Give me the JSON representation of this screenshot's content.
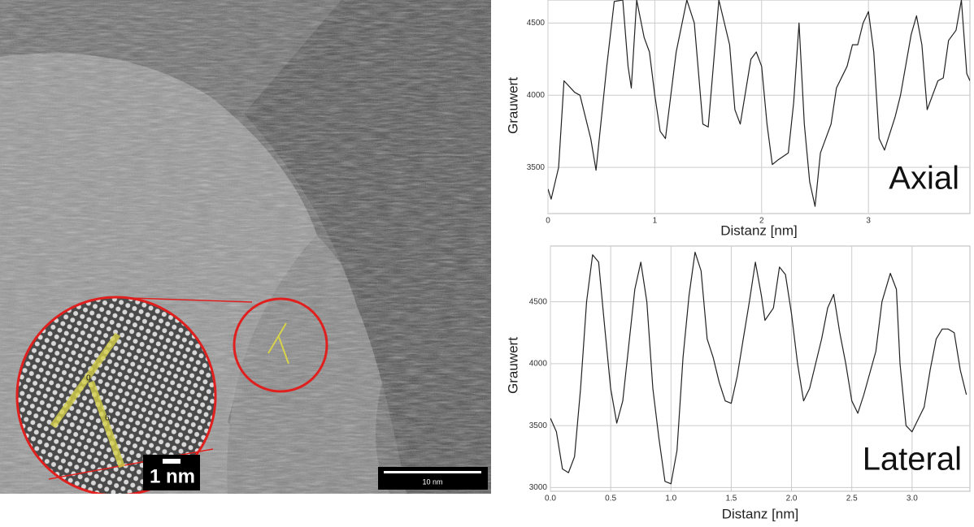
{
  "image": {
    "inset_scale_bar": "1 nm",
    "scale_bar": "10 nm",
    "markers": [
      "0",
      "6"
    ]
  },
  "chart_data": [
    {
      "type": "line",
      "annotation": "Axial",
      "x_label": "Distanz [nm]",
      "y_label": "Grauwert",
      "color": "#222",
      "grid": true,
      "x": [
        0,
        0.03,
        0.1,
        0.15,
        0.25,
        0.3,
        0.4,
        0.45,
        0.55,
        0.62,
        0.7,
        0.75,
        0.78,
        0.83,
        0.9,
        0.95,
        1.0,
        1.05,
        1.1,
        1.2,
        1.3,
        1.37,
        1.45,
        1.5,
        1.6,
        1.7,
        1.75,
        1.8,
        1.9,
        1.95,
        2.0,
        2.05,
        2.1,
        2.15,
        2.25,
        2.3,
        2.35,
        2.4,
        2.45,
        2.5,
        2.55,
        2.65,
        2.7,
        2.8,
        2.85,
        2.9,
        2.95,
        3.0,
        3.05,
        3.1,
        3.15,
        3.25,
        3.3,
        3.4,
        3.45,
        3.5,
        3.55,
        3.6,
        3.65,
        3.7,
        3.75,
        3.82,
        3.87,
        3.92,
        3.95
      ],
      "values": [
        3350,
        3280,
        3500,
        4100,
        4020,
        4000,
        3700,
        3480,
        4200,
        4650,
        4660,
        4200,
        4050,
        4660,
        4400,
        4300,
        4000,
        3750,
        3700,
        4300,
        4660,
        4500,
        3800,
        3780,
        4660,
        4350,
        3900,
        3800,
        4250,
        4300,
        4200,
        3800,
        3520,
        3550,
        3600,
        3950,
        4500,
        3800,
        3400,
        3230,
        3600,
        3800,
        4050,
        4200,
        4350,
        4350,
        4500,
        4580,
        4300,
        3700,
        3620,
        3850,
        4000,
        4420,
        4550,
        4350,
        3900,
        4000,
        4100,
        4120,
        4380,
        4450,
        4660,
        4150,
        4100
      ],
      "xlim": [
        0,
        3.95
      ],
      "ylim": [
        3180,
        4660
      ],
      "xticks": [
        0,
        1,
        2,
        3
      ],
      "yticks": [
        3500,
        4000,
        4500
      ]
    },
    {
      "type": "line",
      "annotation": "Lateral",
      "x_label": "Distanz [nm]",
      "y_label": "Grauwert",
      "color": "#222",
      "grid": true,
      "x": [
        0,
        0.05,
        0.1,
        0.15,
        0.2,
        0.25,
        0.3,
        0.35,
        0.4,
        0.45,
        0.5,
        0.55,
        0.6,
        0.7,
        0.75,
        0.8,
        0.85,
        0.9,
        0.95,
        1.0,
        1.05,
        1.1,
        1.15,
        1.2,
        1.25,
        1.3,
        1.35,
        1.4,
        1.45,
        1.5,
        1.55,
        1.6,
        1.65,
        1.7,
        1.75,
        1.78,
        1.85,
        1.9,
        1.95,
        2.0,
        2.05,
        2.1,
        2.15,
        2.25,
        2.3,
        2.35,
        2.4,
        2.45,
        2.5,
        2.55,
        2.6,
        2.7,
        2.75,
        2.82,
        2.87,
        2.9,
        2.95,
        3.0,
        3.05,
        3.1,
        3.15,
        3.2,
        3.25,
        3.3,
        3.35,
        3.4,
        3.45
      ],
      "values": [
        3560,
        3450,
        3150,
        3120,
        3250,
        3800,
        4500,
        4880,
        4820,
        4300,
        3800,
        3520,
        3700,
        4600,
        4820,
        4500,
        3800,
        3400,
        3050,
        3030,
        3300,
        4050,
        4550,
        4900,
        4750,
        4200,
        4050,
        3850,
        3700,
        3680,
        3900,
        4200,
        4500,
        4820,
        4550,
        4350,
        4450,
        4780,
        4720,
        4400,
        4000,
        3700,
        3800,
        4200,
        4450,
        4560,
        4250,
        4000,
        3700,
        3600,
        3750,
        4100,
        4500,
        4730,
        4600,
        4000,
        3500,
        3450,
        3550,
        3650,
        3950,
        4200,
        4280,
        4280,
        4250,
        3950,
        3750
      ],
      "xlim": [
        0,
        3.48
      ],
      "ylim": [
        2970,
        4950
      ],
      "xticks": [
        {
          "value": 0,
          "label": "0.0"
        },
        {
          "value": 0.5,
          "label": "0.5"
        },
        {
          "value": 1,
          "label": "1.0"
        },
        {
          "value": 1.5,
          "label": "1.5"
        },
        {
          "value": 2,
          "label": "2.0"
        },
        {
          "value": 2.5,
          "label": "2.5"
        },
        {
          "value": 3,
          "label": "3.0"
        }
      ],
      "yticks": [
        3000,
        3500,
        4000,
        4500
      ]
    }
  ]
}
